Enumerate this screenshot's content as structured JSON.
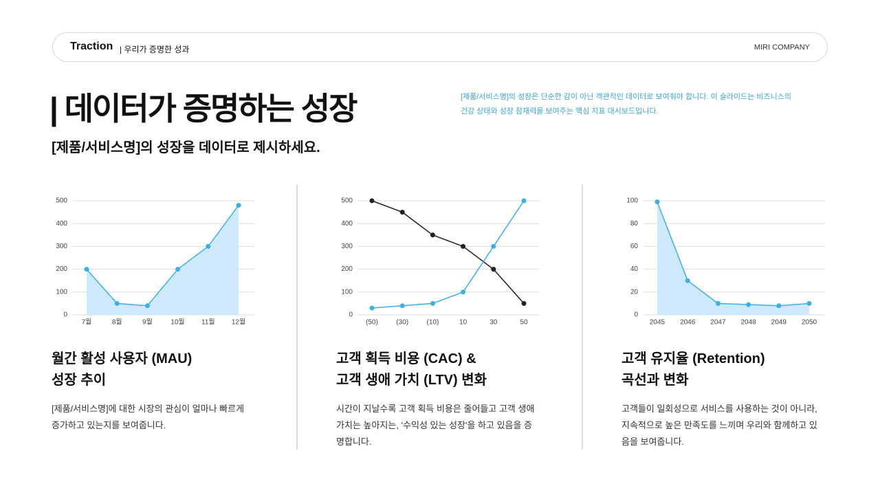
{
  "header": {
    "brand": "Traction",
    "section": "| 우리가 증명한 성과",
    "company": "MIRI COMPANY"
  },
  "title": "| 데이터가 증명하는 성장",
  "subtitle": "[제품/서비스명]의 성장을 데이터로 제시하세요.",
  "intro_lines": [
    "[제품/서비스명]의 성장은 단순한 감이 아닌 객관적인 데이터로 보여줘야 합니다. 이 슬라이드는 비즈니스의",
    "건강 상태와 성장 잠재력을 보여주는 핵심 지표 대시보드입니다."
  ],
  "chart_data": [
    {
      "type": "area",
      "categories": [
        "7월",
        "8월",
        "9월",
        "10월",
        "11월",
        "12월"
      ],
      "series": [
        {
          "color": "#3ab0e6",
          "fill": "#cde9fb",
          "values": [
            200,
            50,
            40,
            200,
            300,
            480
          ]
        }
      ],
      "ylim": [
        0,
        500
      ],
      "yticks": [
        0,
        100,
        200,
        300,
        400,
        500
      ],
      "grid": true,
      "title_lines": [
        "월간 활성 사용자 (MAU)",
        "성장 추이"
      ],
      "description_lines": [
        "[제품/서비스명]에 대한 시장의 관심이 얼마나 빠르게",
        "증가하고 있는지를 보여줍니다."
      ]
    },
    {
      "type": "line",
      "categories": [
        "(50)",
        "(30)",
        "(10)",
        "10",
        "30",
        "50"
      ],
      "series": [
        {
          "color": "#222222",
          "values": [
            500,
            450,
            350,
            300,
            200,
            50
          ]
        },
        {
          "color": "#3ab0e6",
          "values": [
            30,
            40,
            50,
            100,
            300,
            500
          ]
        }
      ],
      "ylim": [
        0,
        500
      ],
      "yticks": [
        0,
        100,
        200,
        300,
        400,
        500
      ],
      "grid": true,
      "title_lines": [
        "고객 획득 비용 (CAC) &",
        "고객 생애 가치 (LTV) 변화"
      ],
      "description_lines": [
        "시간이 지날수록 고객 획득 비용은 줄어들고 고객 생애",
        "가치는 높아지는, '수익성 있는 성장'을 하고 있음을 증",
        "명합니다."
      ]
    },
    {
      "type": "area",
      "categories": [
        "2045",
        "2046",
        "2047",
        "2048",
        "2049",
        "2050"
      ],
      "series": [
        {
          "color": "#3ab0e6",
          "fill": "#cde9fb",
          "values": [
            99,
            30,
            10,
            9,
            8,
            10
          ]
        }
      ],
      "ylim": [
        0,
        100
      ],
      "yticks": [
        0,
        20,
        40,
        60,
        80,
        100
      ],
      "grid": true,
      "title_lines": [
        "고객 유지율 (Retention)",
        "곡선과 변화"
      ],
      "description_lines": [
        "고객들이 일회성으로 서비스를 사용하는 것이 아니라,",
        "지속적으로 높은 만족도를 느끼며 우리와 함께하고 있",
        "음을 보여줍니다."
      ]
    }
  ]
}
